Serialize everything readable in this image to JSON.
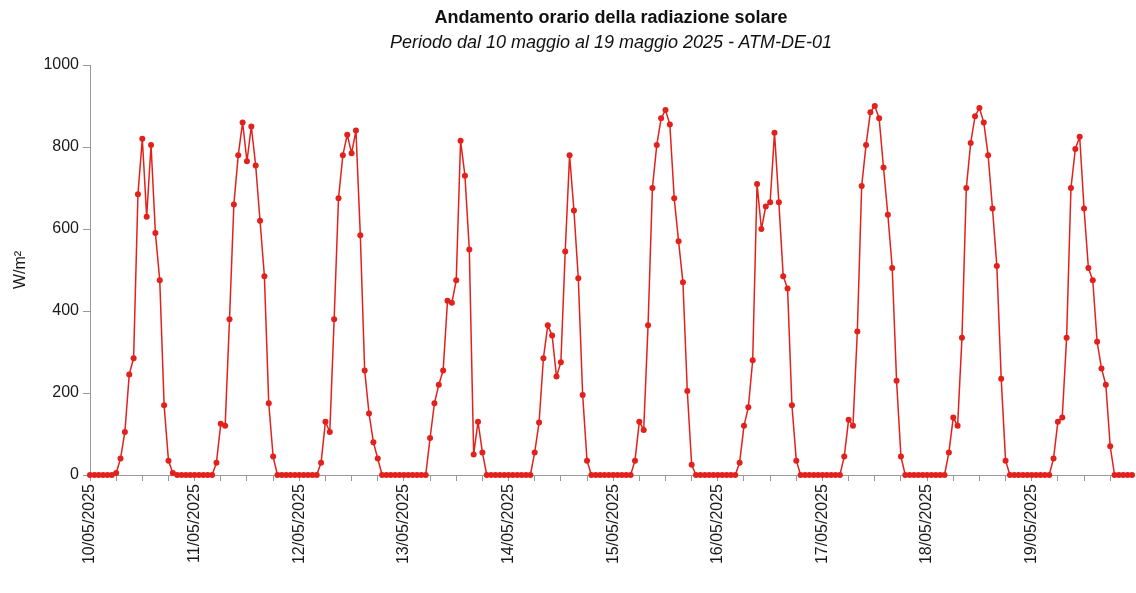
{
  "chart_data": {
    "type": "line",
    "title": "Andamento orario della radiazione solare",
    "subtitle": "Periodo dal 10 maggio al 19 maggio 2025 - ATM-DE-01",
    "ylabel": "W/m²",
    "marker": "circle",
    "x": [
      "2025-05-10T00:00",
      "2025-05-10T01:00",
      "2025-05-10T02:00",
      "2025-05-10T03:00",
      "2025-05-10T04:00",
      "2025-05-10T05:00",
      "2025-05-10T06:00",
      "2025-05-10T07:00",
      "2025-05-10T08:00",
      "2025-05-10T09:00",
      "2025-05-10T10:00",
      "2025-05-10T11:00",
      "2025-05-10T12:00",
      "2025-05-10T13:00",
      "2025-05-10T14:00",
      "2025-05-10T15:00",
      "2025-05-10T16:00",
      "2025-05-10T17:00",
      "2025-05-10T18:00",
      "2025-05-10T19:00",
      "2025-05-10T20:00",
      "2025-05-10T21:00",
      "2025-05-10T22:00",
      "2025-05-10T23:00",
      "2025-05-11T00:00",
      "2025-05-11T01:00",
      "2025-05-11T02:00",
      "2025-05-11T03:00",
      "2025-05-11T04:00",
      "2025-05-11T05:00",
      "2025-05-11T06:00",
      "2025-05-11T07:00",
      "2025-05-11T08:00",
      "2025-05-11T09:00",
      "2025-05-11T10:00",
      "2025-05-11T11:00",
      "2025-05-11T12:00",
      "2025-05-11T13:00",
      "2025-05-11T14:00",
      "2025-05-11T15:00",
      "2025-05-11T16:00",
      "2025-05-11T17:00",
      "2025-05-11T18:00",
      "2025-05-11T19:00",
      "2025-05-11T20:00",
      "2025-05-11T21:00",
      "2025-05-11T22:00",
      "2025-05-11T23:00",
      "2025-05-12T00:00",
      "2025-05-12T01:00",
      "2025-05-12T02:00",
      "2025-05-12T03:00",
      "2025-05-12T04:00",
      "2025-05-12T05:00",
      "2025-05-12T06:00",
      "2025-05-12T07:00",
      "2025-05-12T08:00",
      "2025-05-12T09:00",
      "2025-05-12T10:00",
      "2025-05-12T11:00",
      "2025-05-12T12:00",
      "2025-05-12T13:00",
      "2025-05-12T14:00",
      "2025-05-12T15:00",
      "2025-05-12T16:00",
      "2025-05-12T17:00",
      "2025-05-12T18:00",
      "2025-05-12T19:00",
      "2025-05-12T20:00",
      "2025-05-12T21:00",
      "2025-05-12T22:00",
      "2025-05-12T23:00",
      "2025-05-13T00:00",
      "2025-05-13T01:00",
      "2025-05-13T02:00",
      "2025-05-13T03:00",
      "2025-05-13T04:00",
      "2025-05-13T05:00",
      "2025-05-13T06:00",
      "2025-05-13T07:00",
      "2025-05-13T08:00",
      "2025-05-13T09:00",
      "2025-05-13T10:00",
      "2025-05-13T11:00",
      "2025-05-13T12:00",
      "2025-05-13T13:00",
      "2025-05-13T14:00",
      "2025-05-13T15:00",
      "2025-05-13T16:00",
      "2025-05-13T17:00",
      "2025-05-13T18:00",
      "2025-05-13T19:00",
      "2025-05-13T20:00",
      "2025-05-13T21:00",
      "2025-05-13T22:00",
      "2025-05-13T23:00",
      "2025-05-14T00:00",
      "2025-05-14T01:00",
      "2025-05-14T02:00",
      "2025-05-14T03:00",
      "2025-05-14T04:00",
      "2025-05-14T05:00",
      "2025-05-14T06:00",
      "2025-05-14T07:00",
      "2025-05-14T08:00",
      "2025-05-14T09:00",
      "2025-05-14T10:00",
      "2025-05-14T11:00",
      "2025-05-14T12:00",
      "2025-05-14T13:00",
      "2025-05-14T14:00",
      "2025-05-14T15:00",
      "2025-05-14T16:00",
      "2025-05-14T17:00",
      "2025-05-14T18:00",
      "2025-05-14T19:00",
      "2025-05-14T20:00",
      "2025-05-14T21:00",
      "2025-05-14T22:00",
      "2025-05-14T23:00",
      "2025-05-15T00:00",
      "2025-05-15T01:00",
      "2025-05-15T02:00",
      "2025-05-15T03:00",
      "2025-05-15T04:00",
      "2025-05-15T05:00",
      "2025-05-15T06:00",
      "2025-05-15T07:00",
      "2025-05-15T08:00",
      "2025-05-15T09:00",
      "2025-05-15T10:00",
      "2025-05-15T11:00",
      "2025-05-15T12:00",
      "2025-05-15T13:00",
      "2025-05-15T14:00",
      "2025-05-15T15:00",
      "2025-05-15T16:00",
      "2025-05-15T17:00",
      "2025-05-15T18:00",
      "2025-05-15T19:00",
      "2025-05-15T20:00",
      "2025-05-15T21:00",
      "2025-05-15T22:00",
      "2025-05-15T23:00",
      "2025-05-16T00:00",
      "2025-05-16T01:00",
      "2025-05-16T02:00",
      "2025-05-16T03:00",
      "2025-05-16T04:00",
      "2025-05-16T05:00",
      "2025-05-16T06:00",
      "2025-05-16T07:00",
      "2025-05-16T08:00",
      "2025-05-16T09:00",
      "2025-05-16T10:00",
      "2025-05-16T11:00",
      "2025-05-16T12:00",
      "2025-05-16T13:00",
      "2025-05-16T14:00",
      "2025-05-16T15:00",
      "2025-05-16T16:00",
      "2025-05-16T17:00",
      "2025-05-16T18:00",
      "2025-05-16T19:00",
      "2025-05-16T20:00",
      "2025-05-16T21:00",
      "2025-05-16T22:00",
      "2025-05-16T23:00",
      "2025-05-17T00:00",
      "2025-05-17T01:00",
      "2025-05-17T02:00",
      "2025-05-17T03:00",
      "2025-05-17T04:00",
      "2025-05-17T05:00",
      "2025-05-17T06:00",
      "2025-05-17T07:00",
      "2025-05-17T08:00",
      "2025-05-17T09:00",
      "2025-05-17T10:00",
      "2025-05-17T11:00",
      "2025-05-17T12:00",
      "2025-05-17T13:00",
      "2025-05-17T14:00",
      "2025-05-17T15:00",
      "2025-05-17T16:00",
      "2025-05-17T17:00",
      "2025-05-17T18:00",
      "2025-05-17T19:00",
      "2025-05-17T20:00",
      "2025-05-17T21:00",
      "2025-05-17T22:00",
      "2025-05-17T23:00",
      "2025-05-18T00:00",
      "2025-05-18T01:00",
      "2025-05-18T02:00",
      "2025-05-18T03:00",
      "2025-05-18T04:00",
      "2025-05-18T05:00",
      "2025-05-18T06:00",
      "2025-05-18T07:00",
      "2025-05-18T08:00",
      "2025-05-18T09:00",
      "2025-05-18T10:00",
      "2025-05-18T11:00",
      "2025-05-18T12:00",
      "2025-05-18T13:00",
      "2025-05-18T14:00",
      "2025-05-18T15:00",
      "2025-05-18T16:00",
      "2025-05-18T17:00",
      "2025-05-18T18:00",
      "2025-05-18T19:00",
      "2025-05-18T20:00",
      "2025-05-18T21:00",
      "2025-05-18T22:00",
      "2025-05-18T23:00",
      "2025-05-19T00:00",
      "2025-05-19T01:00",
      "2025-05-19T02:00",
      "2025-05-19T03:00",
      "2025-05-19T04:00",
      "2025-05-19T05:00",
      "2025-05-19T06:00",
      "2025-05-19T07:00",
      "2025-05-19T08:00",
      "2025-05-19T09:00",
      "2025-05-19T10:00",
      "2025-05-19T11:00",
      "2025-05-19T12:00",
      "2025-05-19T13:00",
      "2025-05-19T14:00",
      "2025-05-19T15:00",
      "2025-05-19T16:00",
      "2025-05-19T17:00",
      "2025-05-19T18:00",
      "2025-05-19T19:00",
      "2025-05-19T20:00",
      "2025-05-19T21:00",
      "2025-05-19T22:00",
      "2025-05-19T23:00"
    ],
    "series": [
      {
        "color": "#e3211c",
        "values": [
          0,
          0,
          0,
          0,
          0,
          0,
          5,
          40,
          105,
          245,
          285,
          685,
          820,
          630,
          805,
          590,
          475,
          170,
          35,
          5,
          0,
          0,
          0,
          0,
          0,
          0,
          0,
          0,
          0,
          30,
          125,
          120,
          380,
          660,
          780,
          860,
          765,
          850,
          755,
          620,
          485,
          175,
          45,
          0,
          0,
          0,
          0,
          0,
          0,
          0,
          0,
          0,
          0,
          30,
          130,
          105,
          380,
          675,
          780,
          830,
          785,
          840,
          585,
          255,
          150,
          80,
          40,
          0,
          0,
          0,
          0,
          0,
          0,
          0,
          0,
          0,
          0,
          0,
          90,
          175,
          220,
          255,
          425,
          420,
          475,
          815,
          730,
          550,
          50,
          130,
          55,
          0,
          0,
          0,
          0,
          0,
          0,
          0,
          0,
          0,
          0,
          0,
          55,
          128,
          285,
          365,
          340,
          240,
          275,
          545,
          780,
          645,
          480,
          195,
          35,
          0,
          0,
          0,
          0,
          0,
          0,
          0,
          0,
          0,
          0,
          35,
          130,
          110,
          365,
          700,
          805,
          870,
          890,
          855,
          675,
          570,
          470,
          205,
          25,
          0,
          0,
          0,
          0,
          0,
          0,
          0,
          0,
          0,
          0,
          30,
          120,
          165,
          280,
          710,
          600,
          655,
          665,
          835,
          665,
          485,
          455,
          170,
          35,
          0,
          0,
          0,
          0,
          0,
          0,
          0,
          0,
          0,
          0,
          45,
          135,
          120,
          350,
          705,
          805,
          885,
          900,
          870,
          750,
          635,
          505,
          230,
          45,
          0,
          0,
          0,
          0,
          0,
          0,
          0,
          0,
          0,
          0,
          55,
          140,
          120,
          335,
          700,
          810,
          875,
          895,
          860,
          780,
          650,
          510,
          235,
          35,
          0,
          0,
          0,
          0,
          0,
          0,
          0,
          0,
          0,
          0,
          40,
          130,
          140,
          335,
          700,
          795,
          825,
          650,
          505,
          475,
          325,
          260,
          220,
          70,
          0,
          0,
          0,
          0,
          0
        ]
      }
    ],
    "xlim": [
      "2025-05-10T00:00",
      "2025-05-19T23:00"
    ],
    "xticks": [
      {
        "value": "2025-05-10T00:00",
        "label": "10/05/2025"
      },
      {
        "value": "2025-05-10T06:00",
        "label": null
      },
      {
        "value": "2025-05-10T12:00",
        "label": null
      },
      {
        "value": "2025-05-10T18:00",
        "label": null
      },
      {
        "value": "2025-05-11T00:00",
        "label": "11/05/2025"
      },
      {
        "value": "2025-05-11T06:00",
        "label": null
      },
      {
        "value": "2025-05-11T12:00",
        "label": null
      },
      {
        "value": "2025-05-11T18:00",
        "label": null
      },
      {
        "value": "2025-05-12T00:00",
        "label": "12/05/2025"
      },
      {
        "value": "2025-05-12T06:00",
        "label": null
      },
      {
        "value": "2025-05-12T12:00",
        "label": null
      },
      {
        "value": "2025-05-12T18:00",
        "label": null
      },
      {
        "value": "2025-05-13T00:00",
        "label": "13/05/2025"
      },
      {
        "value": "2025-05-13T06:00",
        "label": null
      },
      {
        "value": "2025-05-13T12:00",
        "label": null
      },
      {
        "value": "2025-05-13T18:00",
        "label": null
      },
      {
        "value": "2025-05-14T00:00",
        "label": "14/05/2025"
      },
      {
        "value": "2025-05-14T06:00",
        "label": null
      },
      {
        "value": "2025-05-14T12:00",
        "label": null
      },
      {
        "value": "2025-05-14T18:00",
        "label": null
      },
      {
        "value": "2025-05-15T00:00",
        "label": "15/05/2025"
      },
      {
        "value": "2025-05-15T06:00",
        "label": null
      },
      {
        "value": "2025-05-15T12:00",
        "label": null
      },
      {
        "value": "2025-05-15T18:00",
        "label": null
      },
      {
        "value": "2025-05-16T00:00",
        "label": "16/05/2025"
      },
      {
        "value": "2025-05-16T06:00",
        "label": null
      },
      {
        "value": "2025-05-16T12:00",
        "label": null
      },
      {
        "value": "2025-05-16T18:00",
        "label": null
      },
      {
        "value": "2025-05-17T00:00",
        "label": "17/05/2025"
      },
      {
        "value": "2025-05-17T06:00",
        "label": null
      },
      {
        "value": "2025-05-17T12:00",
        "label": null
      },
      {
        "value": "2025-05-17T18:00",
        "label": null
      },
      {
        "value": "2025-05-18T00:00",
        "label": "18/05/2025"
      },
      {
        "value": "2025-05-18T06:00",
        "label": null
      },
      {
        "value": "2025-05-18T12:00",
        "label": null
      },
      {
        "value": "2025-05-18T18:00",
        "label": null
      },
      {
        "value": "2025-05-19T00:00",
        "label": "19/05/2025"
      },
      {
        "value": "2025-05-19T06:00",
        "label": null
      },
      {
        "value": "2025-05-19T12:00",
        "label": null
      },
      {
        "value": "2025-05-19T18:00",
        "label": null
      }
    ],
    "ylim": [
      0,
      1000
    ],
    "yticks": [
      0,
      200,
      400,
      600,
      800,
      1000
    ]
  }
}
